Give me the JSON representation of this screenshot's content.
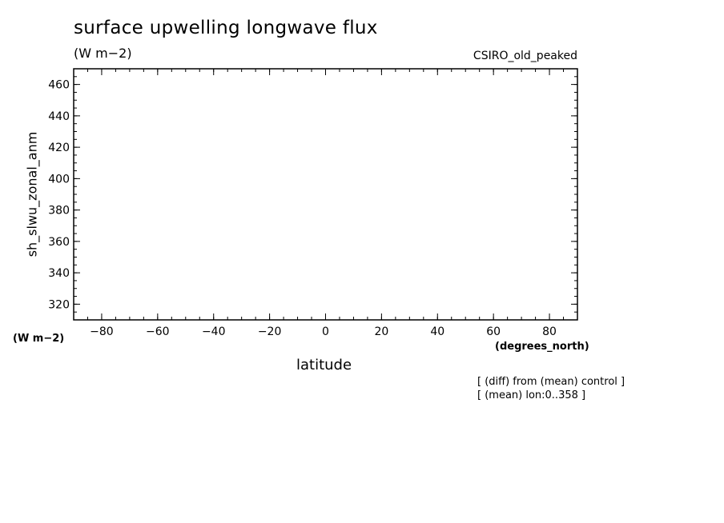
{
  "chart_data": {
    "type": "line",
    "title": "surface upwelling longwave flux",
    "units": "(W m−2)",
    "model": "CSIRO_old_peaked",
    "ylabel": "sh_slwu_zonal_anm",
    "yunits": "(W m−2)",
    "xlabel": "latitude",
    "xunits": "(degrees_north)",
    "xlim": [
      -90,
      90
    ],
    "ylim": [
      310,
      470
    ],
    "xticks": [
      -80,
      -60,
      -40,
      -20,
      0,
      20,
      40,
      60,
      80
    ],
    "yticks": [
      320,
      340,
      360,
      380,
      400,
      420,
      440,
      460
    ],
    "series": [],
    "notes": [
      "[ (diff) from (mean) control ]",
      "[ (mean) lon:0..358 ]"
    ]
  }
}
